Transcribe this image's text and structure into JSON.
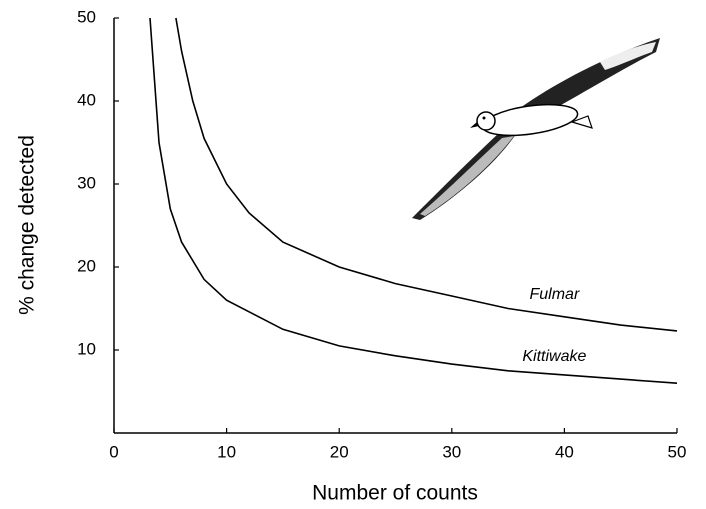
{
  "chart_data": {
    "type": "line",
    "x_label": "Number of counts",
    "y_label": "% change detected",
    "xlim": [
      0,
      50
    ],
    "xticks": [
      0,
      10,
      20,
      30,
      40,
      50
    ],
    "ylim": [
      0,
      50
    ],
    "yticks": [
      10,
      20,
      30,
      40,
      50
    ],
    "series": [
      {
        "name": "Fulmar",
        "color": "#000000",
        "x": [
          5.5,
          6,
          7,
          8,
          10,
          12,
          15,
          20,
          25,
          30,
          35,
          40,
          45,
          50
        ],
        "values": [
          50,
          46,
          40,
          35.5,
          30,
          26.5,
          23,
          20,
          18,
          16.5,
          15,
          14,
          13,
          12.3
        ]
      },
      {
        "name": "Kittiwake",
        "color": "#000000",
        "x": [
          3.2,
          4,
          5,
          6,
          8,
          10,
          15,
          20,
          25,
          30,
          35,
          40,
          45,
          50
        ],
        "values": [
          50,
          35,
          27,
          23,
          18.5,
          16,
          12.5,
          10.5,
          9.3,
          8.3,
          7.5,
          7,
          6.5,
          6
        ]
      }
    ]
  }
}
